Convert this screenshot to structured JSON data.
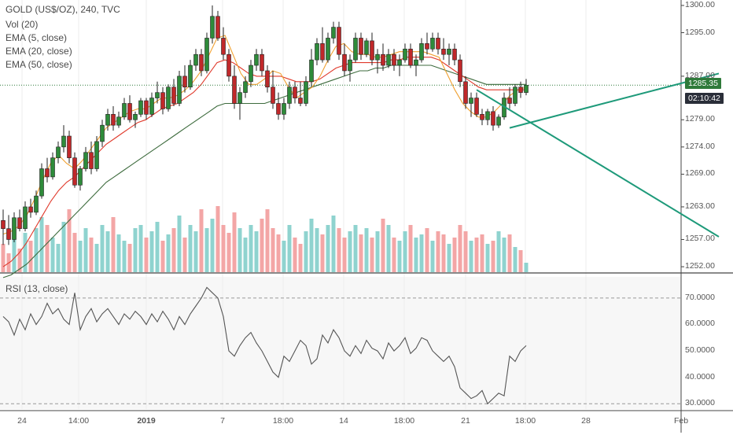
{
  "chart_data": {
    "type": "candlestick",
    "title": "GOLD (US$/OZ), 240, TVC",
    "indicators": [
      "Vol (20)",
      "EMA (5, close)",
      "EMA (20, close)",
      "EMA (50, close)"
    ],
    "price_axis": {
      "ticks": [
        "1300.00",
        "1295.00",
        "1287.00",
        "1285.35",
        "1279.00",
        "1274.00",
        "1269.00",
        "1263.00",
        "1257.00",
        "1252.00"
      ],
      "ylim": [
        1251,
        1301
      ]
    },
    "current_price": "1285.35",
    "countdown": "02:10:42",
    "time_axis": [
      "24",
      "14:00",
      "2019",
      "7",
      "18:00",
      "14",
      "18:00",
      "21",
      "18:00",
      "28",
      "Feb"
    ],
    "candles": [
      [
        1260.5,
        1262.5,
        1256.0,
        1259.0
      ],
      [
        1259.0,
        1261.5,
        1256.0,
        1257.0
      ],
      [
        1257.0,
        1262.0,
        1256.5,
        1261.0
      ],
      [
        1261.0,
        1262.5,
        1258.5,
        1259.0
      ],
      [
        1259.0,
        1264.0,
        1258.5,
        1263.0
      ],
      [
        1263.0,
        1264.5,
        1261.0,
        1262.0
      ],
      [
        1262.0,
        1266.0,
        1261.5,
        1265.0
      ],
      [
        1265.0,
        1271.0,
        1264.5,
        1270.0
      ],
      [
        1270.0,
        1272.0,
        1267.5,
        1268.5
      ],
      [
        1268.5,
        1273.0,
        1268.0,
        1272.0
      ],
      [
        1272.0,
        1275.0,
        1271.0,
        1274.0
      ],
      [
        1274.0,
        1278.0,
        1273.0,
        1276.0
      ],
      [
        1276.0,
        1277.0,
        1271.0,
        1272.0
      ],
      [
        1272.0,
        1273.0,
        1266.5,
        1267.0
      ],
      [
        1267.0,
        1270.5,
        1266.0,
        1270.0
      ],
      [
        1270.0,
        1274.0,
        1269.5,
        1273.0
      ],
      [
        1273.0,
        1275.0,
        1269.0,
        1270.0
      ],
      [
        1270.0,
        1276.0,
        1269.5,
        1275.0
      ],
      [
        1275.0,
        1279.0,
        1274.0,
        1278.0
      ],
      [
        1278.0,
        1281.0,
        1277.0,
        1280.0
      ],
      [
        1280.0,
        1281.5,
        1277.0,
        1278.0
      ],
      [
        1278.0,
        1280.5,
        1277.5,
        1279.5
      ],
      [
        1279.5,
        1283.0,
        1279.0,
        1282.0
      ],
      [
        1282.0,
        1283.5,
        1278.5,
        1279.0
      ],
      [
        1279.0,
        1280.5,
        1277.5,
        1280.0
      ],
      [
        1280.0,
        1283.0,
        1279.5,
        1282.5
      ],
      [
        1282.5,
        1283.0,
        1279.0,
        1280.0
      ],
      [
        1280.0,
        1284.0,
        1279.5,
        1283.0
      ],
      [
        1283.0,
        1286.0,
        1282.0,
        1284.0
      ],
      [
        1284.0,
        1285.0,
        1280.0,
        1281.0
      ],
      [
        1281.0,
        1285.5,
        1280.5,
        1285.0
      ],
      [
        1285.0,
        1286.5,
        1281.5,
        1282.0
      ],
      [
        1282.0,
        1288.0,
        1281.5,
        1287.0
      ],
      [
        1287.0,
        1289.0,
        1284.0,
        1285.0
      ],
      [
        1285.0,
        1290.0,
        1284.5,
        1289.0
      ],
      [
        1289.0,
        1292.0,
        1288.0,
        1291.0
      ],
      [
        1291.0,
        1292.0,
        1287.0,
        1288.0
      ],
      [
        1288.0,
        1295.0,
        1287.5,
        1294.0
      ],
      [
        1294.0,
        1300.0,
        1293.0,
        1298.0
      ],
      [
        1298.0,
        1299.0,
        1293.5,
        1294.0
      ],
      [
        1294.0,
        1296.0,
        1290.0,
        1291.0
      ],
      [
        1291.0,
        1292.0,
        1286.0,
        1287.0
      ],
      [
        1287.0,
        1289.0,
        1281.0,
        1282.0
      ],
      [
        1282.0,
        1285.0,
        1279.0,
        1284.0
      ],
      [
        1284.0,
        1287.0,
        1283.0,
        1286.0
      ],
      [
        1286.0,
        1290.0,
        1285.0,
        1289.0
      ],
      [
        1289.0,
        1292.0,
        1288.0,
        1291.0
      ],
      [
        1291.0,
        1292.0,
        1287.0,
        1288.0
      ],
      [
        1288.0,
        1289.0,
        1284.0,
        1285.0
      ],
      [
        1285.0,
        1288.0,
        1281.0,
        1282.0
      ],
      [
        1282.0,
        1284.0,
        1279.0,
        1280.0
      ],
      [
        1280.0,
        1283.0,
        1279.0,
        1282.0
      ],
      [
        1282.0,
        1286.0,
        1281.0,
        1285.0
      ],
      [
        1285.0,
        1286.0,
        1282.0,
        1283.0
      ],
      [
        1283.0,
        1286.0,
        1281.5,
        1282.0
      ],
      [
        1282.0,
        1287.0,
        1281.5,
        1286.0
      ],
      [
        1286.0,
        1292.0,
        1285.0,
        1290.0
      ],
      [
        1290.0,
        1294.0,
        1289.0,
        1293.0
      ],
      [
        1293.0,
        1296.0,
        1289.5,
        1290.0
      ],
      [
        1290.0,
        1295.0,
        1289.5,
        1294.0
      ],
      [
        1294.0,
        1297.0,
        1293.0,
        1296.0
      ],
      [
        1296.0,
        1297.0,
        1290.0,
        1291.0
      ],
      [
        1291.0,
        1293.0,
        1287.0,
        1288.0
      ],
      [
        1288.0,
        1291.0,
        1286.0,
        1290.0
      ],
      [
        1290.0,
        1295.0,
        1289.5,
        1294.0
      ],
      [
        1294.0,
        1295.0,
        1290.0,
        1291.0
      ],
      [
        1291.0,
        1294.0,
        1290.5,
        1293.5
      ],
      [
        1293.5,
        1295.0,
        1289.0,
        1290.0
      ],
      [
        1290.0,
        1292.0,
        1287.5,
        1291.0
      ],
      [
        1291.0,
        1293.0,
        1288.0,
        1289.0
      ],
      [
        1289.0,
        1292.0,
        1288.5,
        1291.0
      ],
      [
        1291.0,
        1292.0,
        1288.0,
        1289.0
      ],
      [
        1289.0,
        1291.0,
        1287.0,
        1290.0
      ],
      [
        1290.0,
        1293.0,
        1289.5,
        1292.0
      ],
      [
        1292.0,
        1293.0,
        1288.5,
        1289.0
      ],
      [
        1289.0,
        1291.0,
        1287.0,
        1290.0
      ],
      [
        1290.0,
        1294.0,
        1289.5,
        1293.0
      ],
      [
        1293.0,
        1295.0,
        1291.0,
        1292.0
      ],
      [
        1292.0,
        1295.0,
        1291.5,
        1294.0
      ],
      [
        1294.0,
        1295.0,
        1291.0,
        1292.0
      ],
      [
        1292.0,
        1294.0,
        1290.0,
        1291.0
      ],
      [
        1291.0,
        1293.0,
        1289.0,
        1292.0
      ],
      [
        1292.0,
        1293.0,
        1289.0,
        1290.0
      ],
      [
        1290.0,
        1291.0,
        1285.0,
        1286.0
      ],
      [
        1286.0,
        1287.0,
        1281.0,
        1282.0
      ],
      [
        1282.0,
        1284.0,
        1279.5,
        1283.0
      ],
      [
        1283.0,
        1284.0,
        1279.5,
        1280.0
      ],
      [
        1280.0,
        1281.0,
        1278.0,
        1279.0
      ],
      [
        1279.0,
        1281.0,
        1278.0,
        1280.5
      ],
      [
        1280.5,
        1281.5,
        1277.0,
        1278.0
      ],
      [
        1278.0,
        1280.0,
        1277.5,
        1279.5
      ],
      [
        1279.5,
        1284.0,
        1279.0,
        1283.0
      ],
      [
        1283.0,
        1285.0,
        1281.0,
        1282.0
      ],
      [
        1282.0,
        1285.5,
        1281.5,
        1285.0
      ],
      [
        1285.0,
        1286.0,
        1283.0,
        1284.0
      ],
      [
        1284.0,
        1286.5,
        1283.5,
        1285.35
      ]
    ],
    "volume": [
      18,
      12,
      22,
      15,
      25,
      20,
      28,
      35,
      30,
      22,
      18,
      32,
      40,
      25,
      20,
      28,
      22,
      18,
      30,
      26,
      35,
      24,
      20,
      18,
      28,
      30,
      22,
      26,
      32,
      20,
      24,
      28,
      36,
      22,
      30,
      26,
      40,
      28,
      34,
      42,
      30,
      25,
      38,
      28,
      22,
      30,
      26,
      34,
      40,
      28,
      24,
      20,
      30,
      22,
      18,
      26,
      34,
      28,
      24,
      30,
      36,
      28,
      22,
      26,
      30,
      24,
      28,
      22,
      26,
      34,
      30,
      22,
      20,
      26,
      30,
      22,
      24,
      28,
      20,
      26,
      24,
      18,
      22,
      30,
      26,
      20,
      22,
      24,
      18,
      20,
      26,
      22,
      24,
      16,
      14,
      6
    ],
    "ema": {
      "ema5": [
        1258,
        1258.5,
        1259.5,
        1261.5,
        1264.5,
        1268,
        1271,
        1272.5,
        1271,
        1270,
        1271.5,
        1273.5,
        1275.5,
        1277.5,
        1278.5,
        1279.5,
        1280.5,
        1281,
        1281,
        1282,
        1283,
        1283,
        1283.5,
        1284.5,
        1286,
        1288,
        1291,
        1294,
        1294.5,
        1291,
        1287.5,
        1285.5,
        1285.5,
        1286.5,
        1288,
        1287.5,
        1285,
        1283,
        1284,
        1285,
        1287,
        1290,
        1292.5,
        1293,
        1291.5,
        1291,
        1291,
        1290.5,
        1290.5,
        1291,
        1291.5,
        1291.5,
        1291.5,
        1291.5,
        1291,
        1290.5,
        1287.5,
        1284.5,
        1282,
        1280.5,
        1279.5,
        1279.5,
        1280.5,
        1282,
        1283.5,
        1284.5,
        1285
      ],
      "ema20": [
        1252,
        1253,
        1254.5,
        1256.5,
        1259,
        1261.5,
        1264,
        1266,
        1267.5,
        1268.5,
        1270,
        1271.5,
        1273,
        1274.5,
        1275.5,
        1276.5,
        1277.5,
        1278.5,
        1279,
        1280,
        1281,
        1281.5,
        1282,
        1283,
        1284,
        1285.5,
        1287.5,
        1289.5,
        1290,
        1289.5,
        1288.5,
        1287.5,
        1287,
        1287,
        1287,
        1287,
        1286.5,
        1286,
        1286,
        1286,
        1286.5,
        1287.5,
        1288.5,
        1289,
        1289.5,
        1289.5,
        1289.5,
        1289.5,
        1289.5,
        1290,
        1290,
        1290.5,
        1290.5,
        1290.5,
        1290.5,
        1290,
        1289,
        1288,
        1287,
        1286,
        1285,
        1284.5,
        1284.5,
        1284.5,
        1284.5,
        1284.5,
        1284.5
      ],
      "ema50": [
        1250,
        1250.5,
        1251.5,
        1252.5,
        1254,
        1255.5,
        1257,
        1258.5,
        1260,
        1261.5,
        1263,
        1264.5,
        1266,
        1267.5,
        1268.5,
        1269.5,
        1270.5,
        1271.5,
        1272.5,
        1273.5,
        1274.5,
        1275.5,
        1276.5,
        1277.5,
        1278.5,
        1279.5,
        1280.5,
        1281.5,
        1282,
        1282,
        1282,
        1282,
        1282,
        1282,
        1282.5,
        1283,
        1283.5,
        1284,
        1284.5,
        1285,
        1285.5,
        1286,
        1286.5,
        1287,
        1287.5,
        1288,
        1288,
        1288.5,
        1288.5,
        1289,
        1289,
        1289,
        1289,
        1289,
        1289,
        1288.5,
        1288,
        1287.5,
        1287,
        1286.5,
        1286,
        1285.5,
        1285.5,
        1285.5,
        1285.5,
        1285.5,
        1285.5
      ]
    },
    "trendlines": [
      {
        "name": "falling",
        "from": [
          86,
          1284.5
        ],
        "to": [
          130,
          1257.5
        ]
      },
      {
        "name": "rising",
        "from": [
          92,
          1277.5
        ],
        "to": [
          130,
          1287.5
        ]
      }
    ],
    "rsi": {
      "label": "RSI (13, close)",
      "ticks": [
        "70.0000",
        "60.0000",
        "50.0000",
        "40.0000",
        "30.0000"
      ],
      "ylim": [
        28,
        78
      ],
      "levels": [
        70,
        30
      ],
      "values": [
        63,
        61,
        56,
        62,
        58,
        64,
        60,
        63,
        68,
        64,
        66,
        62,
        60,
        72,
        58,
        63,
        66,
        61,
        64,
        66,
        63,
        60,
        64,
        62,
        65,
        63,
        60,
        64,
        61,
        65,
        62,
        58,
        63,
        60,
        64,
        67,
        70,
        74,
        72,
        70,
        63,
        50,
        48,
        52,
        55,
        57,
        53,
        50,
        46,
        42,
        40,
        48,
        46,
        50,
        54,
        52,
        45,
        47,
        56,
        53,
        58,
        55,
        50,
        48,
        52,
        49,
        54,
        51,
        50,
        47,
        53,
        50,
        52,
        55,
        49,
        51,
        55,
        54,
        50,
        48,
        46,
        48,
        44,
        36,
        34,
        32,
        33,
        35,
        30,
        32,
        34,
        33,
        48,
        46,
        50,
        52
      ]
    }
  }
}
